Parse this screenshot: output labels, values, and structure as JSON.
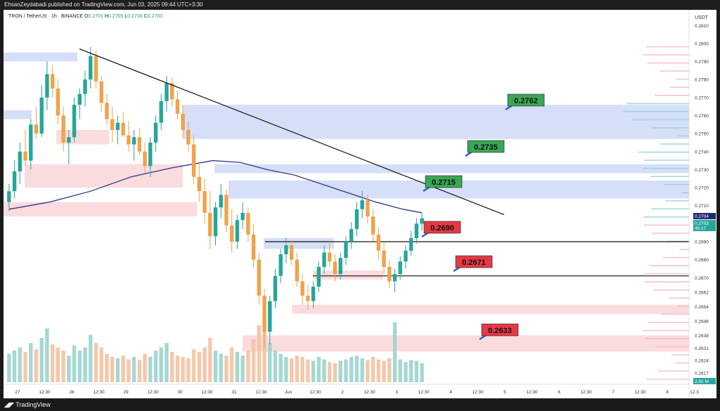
{
  "header": {
    "published_text": "EhsanZeydabadi published on TradingView.com, Jun 03, 2025 09:44 UTC+3:30"
  },
  "footer": {
    "brand": "TradingView",
    "icon": "tradingview-logo-icon"
  },
  "legend": {
    "symbol": "TRON / TetherUS · 1h · BINANCE",
    "open_label": "O",
    "open": "0.2701",
    "high_label": "H",
    "high": "0.2705",
    "low_label": "L",
    "low": "0.2700",
    "close_label": "C",
    "close": "0.2703"
  },
  "colors": {
    "up": "#26a69a",
    "down": "#f0a24a",
    "ma": "#2b3a8c",
    "trendline": "#111111",
    "resistance_label": "#3aa655",
    "support_label": "#e53946",
    "zone_blue": "#c8d4f6",
    "zone_red": "#f8d0d4"
  },
  "chart_data": {
    "type": "candlestick",
    "symbol": "TRON / TetherUS",
    "timeframe": "1h",
    "exchange": "BINANCE",
    "currency": "USDT",
    "x_ticks": [
      "27",
      "12:30",
      "28",
      "12:30",
      "29",
      "12:30",
      "30",
      "12:30",
      "31",
      "12:30",
      "Jun",
      "12:30",
      "2",
      "12:30",
      "3",
      "12:30",
      "4",
      "12:30",
      "5",
      "12:30",
      "6",
      "12:30",
      "7",
      "12:30",
      "8",
      "12:3"
    ],
    "y_ticks": [
      "0.2810",
      "0.2800",
      "0.2790",
      "0.2780",
      "0.2770",
      "0.2760",
      "0.2750",
      "0.2740",
      "0.2730",
      "0.2720",
      "0.2710",
      "0.2690",
      "0.2680",
      "0.2670",
      "0.2662",
      "0.2654",
      "0.2646",
      "0.2638",
      "0.2631",
      "0.2624",
      "0.2617"
    ],
    "ylim": [
      0.2612,
      0.2814
    ],
    "price_tags": {
      "current": "0.2704",
      "close": "0.2703",
      "countdown": "45:17",
      "volume": "2.92 M"
    },
    "levels": [
      {
        "label": "0.2762",
        "price": 0.2762,
        "kind": "resistance"
      },
      {
        "label": "0.2735",
        "price": 0.2735,
        "kind": "resistance"
      },
      {
        "label": "0.2715",
        "price": 0.2715,
        "kind": "resistance"
      },
      {
        "label": "0.2690",
        "price": 0.269,
        "kind": "support"
      },
      {
        "label": "0.2671",
        "price": 0.2671,
        "kind": "support"
      },
      {
        "label": "0.2633",
        "price": 0.2633,
        "kind": "support"
      }
    ],
    "trendline": {
      "from": {
        "t": 14,
        "price": 0.2797
      },
      "to": {
        "t": 158,
        "price": 0.2705
      }
    },
    "moving_average": [
      [
        0,
        0.2708
      ],
      [
        15,
        0.2712
      ],
      [
        30,
        0.2718
      ],
      [
        45,
        0.2726
      ],
      [
        60,
        0.2731
      ],
      [
        75,
        0.2735
      ],
      [
        85,
        0.2734
      ],
      [
        95,
        0.273
      ],
      [
        105,
        0.2727
      ],
      [
        115,
        0.2722
      ],
      [
        125,
        0.2717
      ],
      [
        135,
        0.2712
      ],
      [
        145,
        0.2708
      ],
      [
        152,
        0.2706
      ]
    ],
    "candles": [
      [
        0.2712,
        0.2722,
        0.2707,
        0.2718
      ],
      [
        0.2718,
        0.2735,
        0.2714,
        0.2729
      ],
      [
        0.2729,
        0.2745,
        0.2722,
        0.274
      ],
      [
        0.274,
        0.2752,
        0.2732,
        0.2735
      ],
      [
        0.2735,
        0.2758,
        0.273,
        0.2755
      ],
      [
        0.2755,
        0.2765,
        0.2747,
        0.275
      ],
      [
        0.275,
        0.2777,
        0.2748,
        0.277
      ],
      [
        0.277,
        0.279,
        0.2763,
        0.2783
      ],
      [
        0.2783,
        0.2788,
        0.277,
        0.2775
      ],
      [
        0.2775,
        0.278,
        0.2755,
        0.276
      ],
      [
        0.276,
        0.2765,
        0.274,
        0.2745
      ],
      [
        0.2745,
        0.2752,
        0.2733,
        0.2748
      ],
      [
        0.2748,
        0.277,
        0.2745,
        0.2766
      ],
      [
        0.2766,
        0.2775,
        0.2758,
        0.2772
      ],
      [
        0.2772,
        0.2785,
        0.2765,
        0.278
      ],
      [
        0.278,
        0.2798,
        0.2775,
        0.2793
      ],
      [
        0.2793,
        0.2796,
        0.2775,
        0.2779
      ],
      [
        0.2779,
        0.2782,
        0.2762,
        0.2767
      ],
      [
        0.2767,
        0.2772,
        0.2755,
        0.2758
      ],
      [
        0.2758,
        0.2765,
        0.2745,
        0.2752
      ],
      [
        0.2752,
        0.276,
        0.2744,
        0.2756
      ],
      [
        0.2756,
        0.2762,
        0.2748,
        0.2749
      ],
      [
        0.2749,
        0.2757,
        0.274,
        0.2744
      ],
      [
        0.2744,
        0.2752,
        0.2735,
        0.2748
      ],
      [
        0.2748,
        0.2753,
        0.2738,
        0.274
      ],
      [
        0.274,
        0.2745,
        0.2728,
        0.2732
      ],
      [
        0.2732,
        0.2748,
        0.2726,
        0.2745
      ],
      [
        0.2745,
        0.276,
        0.274,
        0.2756
      ],
      [
        0.2756,
        0.2772,
        0.2752,
        0.2768
      ],
      [
        0.2768,
        0.2782,
        0.2762,
        0.2778
      ],
      [
        0.2778,
        0.2781,
        0.2765,
        0.2769
      ],
      [
        0.2769,
        0.2774,
        0.2758,
        0.2761
      ],
      [
        0.2761,
        0.2766,
        0.2748,
        0.2752
      ],
      [
        0.2752,
        0.2757,
        0.274,
        0.2744
      ],
      [
        0.2744,
        0.2749,
        0.2722,
        0.2726
      ],
      [
        0.2726,
        0.2733,
        0.2712,
        0.2718
      ],
      [
        0.2718,
        0.2725,
        0.27,
        0.2706
      ],
      [
        0.2706,
        0.2718,
        0.2686,
        0.2693
      ],
      [
        0.2693,
        0.2712,
        0.2688,
        0.2709
      ],
      [
        0.2709,
        0.2722,
        0.2703,
        0.2716
      ],
      [
        0.2716,
        0.2719,
        0.2695,
        0.2699
      ],
      [
        0.2699,
        0.2708,
        0.2684,
        0.269
      ],
      [
        0.269,
        0.2705,
        0.2686,
        0.2702
      ],
      [
        0.2702,
        0.2712,
        0.2697,
        0.2706
      ],
      [
        0.2706,
        0.2709,
        0.269,
        0.2694
      ],
      [
        0.2694,
        0.27,
        0.2676,
        0.268
      ],
      [
        0.268,
        0.2684,
        0.2655,
        0.266
      ],
      [
        0.266,
        0.2664,
        0.2631,
        0.264
      ],
      [
        0.264,
        0.266,
        0.2633,
        0.2657
      ],
      [
        0.2657,
        0.2675,
        0.2653,
        0.2671
      ],
      [
        0.2671,
        0.2686,
        0.2667,
        0.2683
      ],
      [
        0.2683,
        0.2692,
        0.2678,
        0.2688
      ],
      [
        0.2688,
        0.2691,
        0.2677,
        0.268
      ],
      [
        0.268,
        0.2684,
        0.2665,
        0.2668
      ],
      [
        0.2668,
        0.2672,
        0.2655,
        0.266
      ],
      [
        0.266,
        0.2666,
        0.2652,
        0.2657
      ],
      [
        0.2657,
        0.2668,
        0.2653,
        0.2665
      ],
      [
        0.2665,
        0.2679,
        0.2662,
        0.2676
      ],
      [
        0.2676,
        0.2688,
        0.2672,
        0.2684
      ],
      [
        0.2684,
        0.269,
        0.2676,
        0.2679
      ],
      [
        0.2679,
        0.2683,
        0.2668,
        0.2672
      ],
      [
        0.2672,
        0.2684,
        0.2669,
        0.2681
      ],
      [
        0.2681,
        0.2693,
        0.2677,
        0.269
      ],
      [
        0.269,
        0.2701,
        0.2686,
        0.2697
      ],
      [
        0.2697,
        0.2712,
        0.2693,
        0.2708
      ],
      [
        0.2708,
        0.2718,
        0.2703,
        0.2713
      ],
      [
        0.2713,
        0.2716,
        0.27,
        0.2704
      ],
      [
        0.2704,
        0.2708,
        0.269,
        0.2694
      ],
      [
        0.2694,
        0.2698,
        0.268,
        0.2685
      ],
      [
        0.2685,
        0.269,
        0.2672,
        0.2676
      ],
      [
        0.2676,
        0.268,
        0.2664,
        0.2668
      ],
      [
        0.2668,
        0.2675,
        0.2662,
        0.2672
      ],
      [
        0.2672,
        0.2682,
        0.2669,
        0.2679
      ],
      [
        0.2679,
        0.2688,
        0.2675,
        0.2685
      ],
      [
        0.2685,
        0.2696,
        0.2682,
        0.2692
      ],
      [
        0.2692,
        0.2703,
        0.2689,
        0.27
      ],
      [
        0.27,
        0.2706,
        0.2696,
        0.2703
      ]
    ],
    "volume": [
      0.45,
      0.5,
      0.55,
      0.48,
      0.62,
      0.52,
      0.7,
      0.85,
      0.6,
      0.55,
      0.5,
      0.42,
      0.58,
      0.5,
      0.55,
      0.75,
      0.62,
      0.55,
      0.45,
      0.4,
      0.38,
      0.42,
      0.36,
      0.4,
      0.35,
      0.45,
      0.4,
      0.5,
      0.55,
      0.62,
      0.48,
      0.42,
      0.4,
      0.38,
      0.52,
      0.48,
      0.55,
      0.7,
      0.5,
      0.45,
      0.42,
      0.55,
      0.48,
      0.42,
      0.5,
      0.68,
      0.9,
      1.0,
      0.62,
      0.5,
      0.45,
      0.4,
      0.38,
      0.42,
      0.4,
      0.36,
      0.34,
      0.4,
      0.36,
      0.32,
      0.3,
      0.34,
      0.36,
      0.4,
      0.42,
      0.38,
      0.35,
      0.4,
      0.36,
      0.34,
      0.38,
      0.95,
      0.36,
      0.32,
      0.35,
      0.34,
      0.3
    ]
  }
}
